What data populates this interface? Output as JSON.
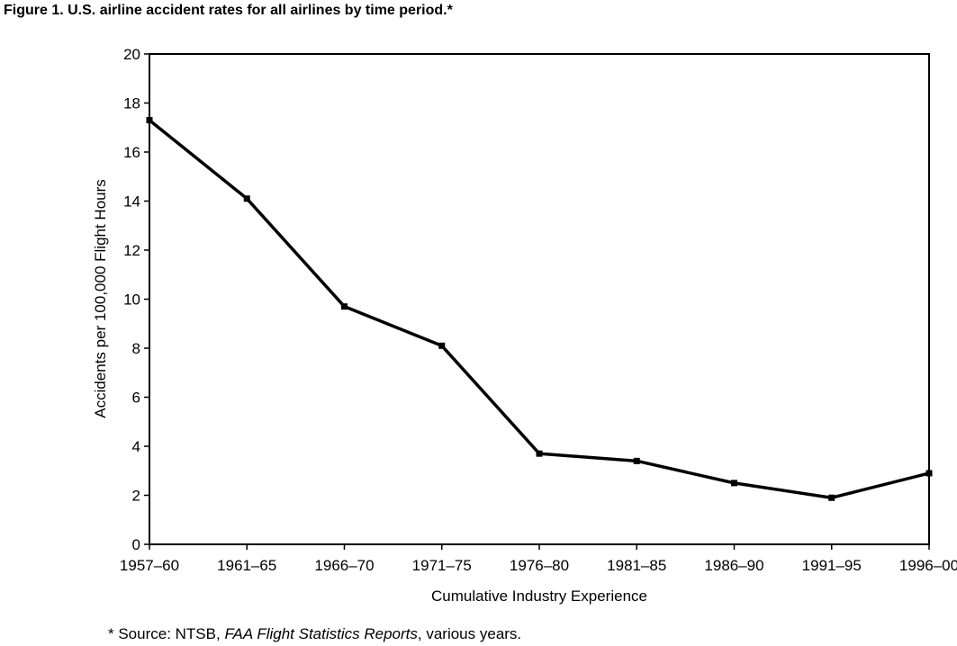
{
  "title": "Figure 1. U.S. airline accident rates for all airlines by time period.*",
  "footnote": {
    "prefix": "* Source: NTSB, ",
    "italic": "FAA Flight Statistics Reports",
    "suffix": ", various years."
  },
  "chart_data": {
    "type": "line",
    "categories": [
      "1957–60",
      "1961–65",
      "1966–70",
      "1971–75",
      "1976–80",
      "1981–85",
      "1986–90",
      "1991–95",
      "1996–00"
    ],
    "series": [
      {
        "values": [
          17.3,
          14.1,
          9.7,
          8.1,
          3.7,
          3.4,
          2.5,
          1.9,
          2.9
        ]
      }
    ],
    "xlabel": "Cumulative Industry Experience",
    "ylabel": "Accidents per 100,000 Flight Hours",
    "ylim": [
      0,
      20
    ],
    "yticks": [
      0,
      2,
      4,
      6,
      8,
      10,
      12,
      14,
      16,
      18,
      20
    ],
    "grid": false,
    "color": "#000000"
  }
}
